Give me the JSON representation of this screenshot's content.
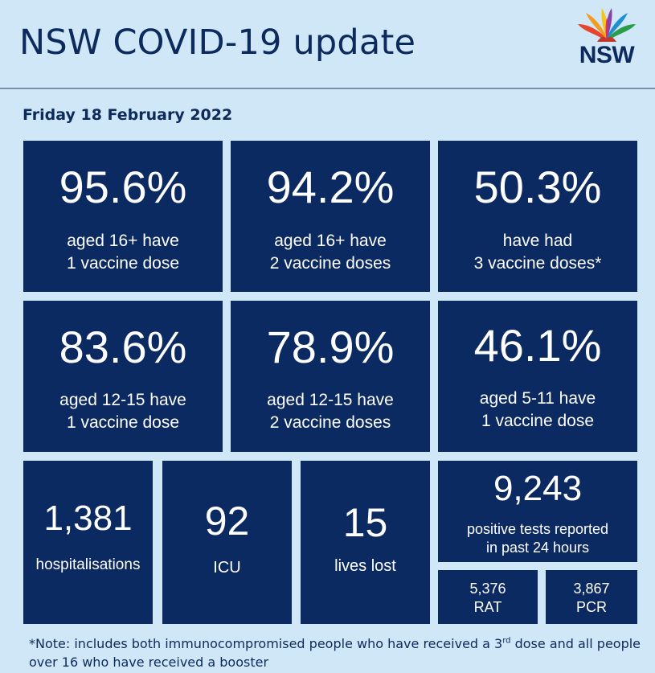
{
  "header": {
    "title": "NSW COVID-19 update",
    "logo_text": "NSW"
  },
  "date": "Friday 18 February 2022",
  "vaccine_stats": [
    {
      "value": "95.6%",
      "line1": "aged 16+ have",
      "line2": "1 vaccine dose"
    },
    {
      "value": "94.2%",
      "line1": "aged 16+ have",
      "line2": "2 vaccine doses"
    },
    {
      "value": "50.3%",
      "line1": "have had",
      "line2": "3 vaccine doses*"
    },
    {
      "value": "83.6%",
      "line1": "aged 12-15 have",
      "line2": "1 vaccine dose"
    },
    {
      "value": "78.9%",
      "line1": "aged 12-15 have",
      "line2": "2 vaccine doses"
    },
    {
      "value": "46.1%",
      "line1": "aged 5-11 have",
      "line2": "1 vaccine dose"
    }
  ],
  "hospital_stats": [
    {
      "value": "1,381",
      "label": "hospitalisations"
    },
    {
      "value": "92",
      "label": "ICU"
    },
    {
      "value": "15",
      "label": "lives lost"
    }
  ],
  "tests": {
    "value": "9,243",
    "line1": "positive tests reported",
    "line2": "in past 24 hours",
    "rat": {
      "value": "5,376",
      "label": "RAT"
    },
    "pcr": {
      "value": "3,867",
      "label": "PCR"
    }
  },
  "note": {
    "part1": "*Note: includes both immunocompromised people who have received a 3",
    "sup": "rd",
    "part2": " dose and all people over 16 who have received a booster"
  },
  "colors": {
    "tile": "#0c2a62",
    "background": "#cfe7f7",
    "text_dark": "#0d2a5c"
  }
}
